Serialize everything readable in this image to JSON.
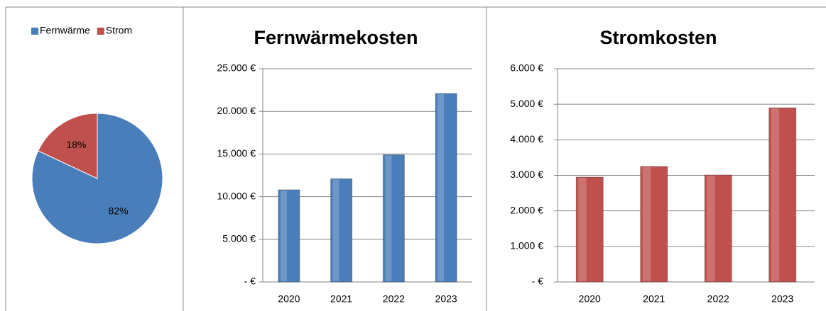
{
  "chart_data": [
    {
      "type": "pie",
      "categories": [
        "Fernwärme",
        "Strom"
      ],
      "values": [
        82,
        18
      ],
      "value_labels": [
        "82%",
        "18%"
      ],
      "colors": [
        "#4a7ebb",
        "#c0504d"
      ],
      "legend": "top"
    },
    {
      "type": "bar",
      "title": "Fernwärmekosten",
      "categories": [
        "2020",
        "2021",
        "2022",
        "2023"
      ],
      "values": [
        10800,
        12100,
        14900,
        22100
      ],
      "color": "#4a7ebb",
      "ylim": [
        0,
        25000
      ],
      "yticks": [
        {
          "value": 0,
          "label": "-   €"
        },
        {
          "value": 5000,
          "label": "5.000 €"
        },
        {
          "value": 10000,
          "label": "10.000 €"
        },
        {
          "value": 15000,
          "label": "15.000 €"
        },
        {
          "value": 20000,
          "label": "20.000 €"
        },
        {
          "value": 25000,
          "label": "25.000 €"
        }
      ],
      "grid": true
    },
    {
      "type": "bar",
      "title": "Stromkosten",
      "categories": [
        "2020",
        "2021",
        "2022",
        "2023"
      ],
      "values": [
        2950,
        3250,
        3010,
        4900
      ],
      "color": "#c0504d",
      "ylim": [
        0,
        6000
      ],
      "yticks": [
        {
          "value": 0,
          "label": "-   €"
        },
        {
          "value": 1000,
          "label": "1.000 €"
        },
        {
          "value": 2000,
          "label": "2.000 €"
        },
        {
          "value": 3000,
          "label": "3.000 €"
        },
        {
          "value": 4000,
          "label": "4.000 €"
        },
        {
          "value": 5000,
          "label": "5.000 €"
        },
        {
          "value": 6000,
          "label": "6.000 €"
        }
      ],
      "grid": true
    }
  ]
}
